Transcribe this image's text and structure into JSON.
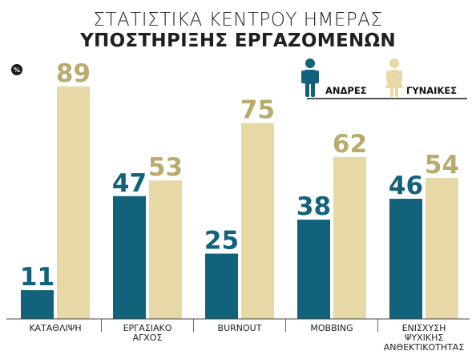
{
  "chart_data": {
    "type": "bar",
    "title": "ΣΤΑΤΙΣΤΙΚΑ ΚΕΝΤΡΟΥ ΗΜΕΡΑΣ",
    "subtitle": "ΥΠΟΣΤΗΡΙΞΗΣ ΕΡΓΑΖΟΜΕΝΩΝ",
    "unit_label": "%",
    "categories": [
      [
        "ΚΑΤΑΘΛΙΨΗ"
      ],
      [
        "ΕΡΓΑΣΙΑΚΟ",
        "ΑΓΧΟΣ"
      ],
      [
        "BURNOUT"
      ],
      [
        "MOBBING"
      ],
      [
        "ΕΝΙΣΧΥΣΗ",
        "ΨΥΧΙΚΗΣ",
        "ΑΝΘΕΚΤΙΚΟΤΗΤΑΣ"
      ]
    ],
    "series": [
      {
        "name": "ΑΝΔΡΕΣ",
        "color": "#11627a",
        "icon": "man-icon",
        "values": [
          11,
          47,
          25,
          38,
          46
        ]
      },
      {
        "name": "ΓΥΝΑΙΚΕΣ",
        "color": "#e6d9a6",
        "label_color": "#b9aa6d",
        "icon": "woman-icon",
        "values": [
          89,
          53,
          75,
          62,
          54
        ]
      }
    ],
    "ylim": [
      0,
      100
    ],
    "grid": false,
    "legend_position": "top-right",
    "data_labels": true
  }
}
